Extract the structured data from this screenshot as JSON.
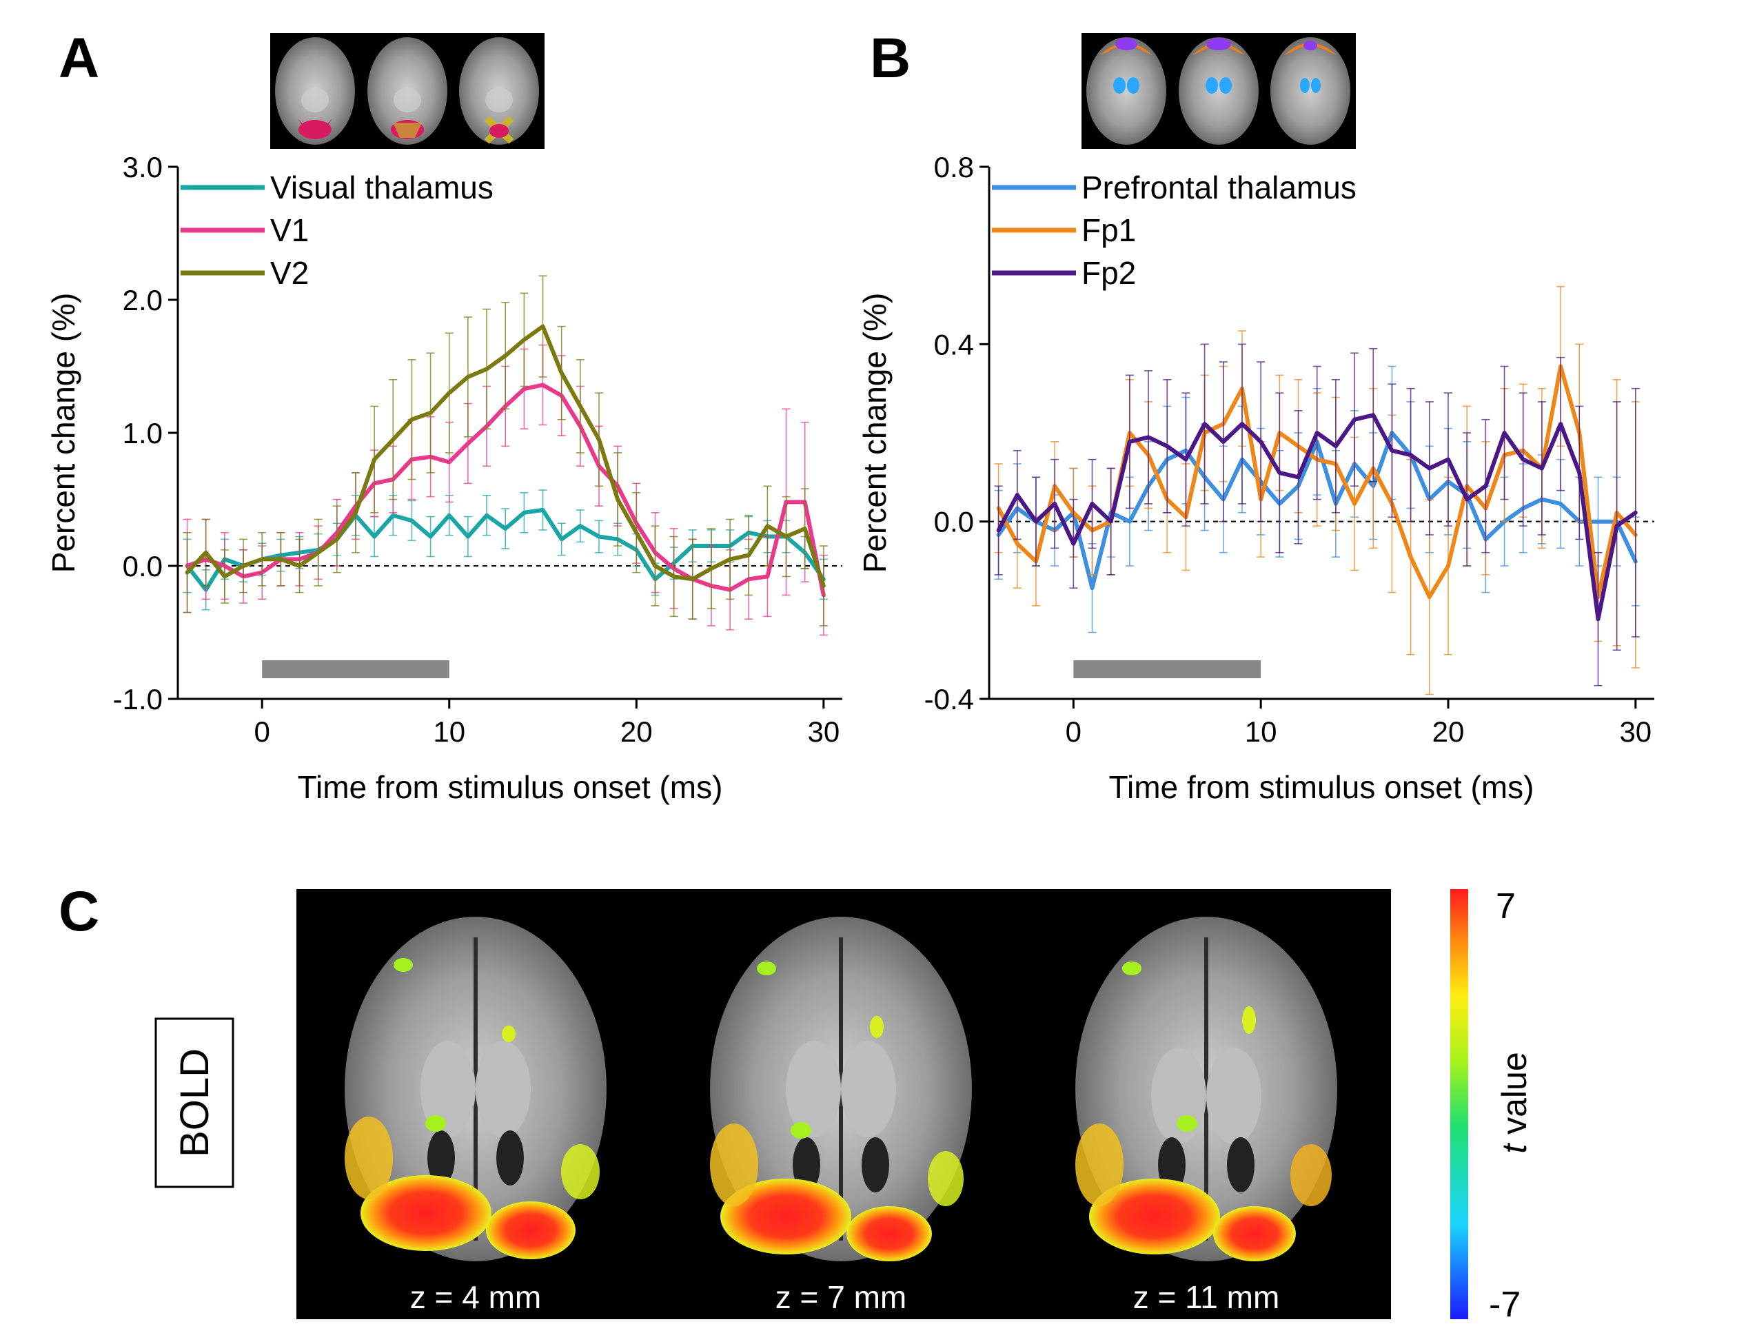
{
  "panel_labels": {
    "a": "A",
    "b": "B",
    "c": "C"
  },
  "colors": {
    "visual_thalamus": "#1AA6A6",
    "v1": "#E8398D",
    "v2": "#7A7A10",
    "prefrontal_thalamus": "#3D8FE0",
    "fp1": "#EF8618",
    "fp2": "#4B1787",
    "stimulus_bar": "#888888"
  },
  "chart_data": [
    {
      "id": "A",
      "type": "line",
      "xlabel": "Time from stimulus onset (ms)",
      "ylabel": "Percent change (%)",
      "xlim": [
        -4.5,
        31
      ],
      "ylim": [
        -1.0,
        3.0
      ],
      "xticks": [
        0,
        10,
        20,
        30
      ],
      "yticks": [
        -1.0,
        0.0,
        1.0,
        2.0,
        3.0
      ],
      "ytick_labels": [
        "-1.0",
        "0.0",
        "1.0",
        "2.0",
        "3.0"
      ],
      "zero_line": true,
      "stimulus_bar": [
        0,
        10
      ],
      "x": [
        -4,
        -3,
        -2,
        -1,
        0,
        1,
        2,
        3,
        4,
        5,
        6,
        7,
        8,
        9,
        10,
        11,
        12,
        13,
        14,
        15,
        16,
        17,
        18,
        19,
        20,
        21,
        22,
        23,
        24,
        25,
        26,
        27,
        28,
        29,
        30
      ],
      "series": [
        {
          "name": "Visual thalamus",
          "color_key": "visual_thalamus",
          "values": [
            0.0,
            -0.18,
            0.05,
            0.0,
            0.05,
            0.08,
            0.1,
            0.12,
            0.2,
            0.38,
            0.22,
            0.38,
            0.34,
            0.22,
            0.38,
            0.22,
            0.38,
            0.28,
            0.4,
            0.42,
            0.2,
            0.3,
            0.22,
            0.2,
            0.12,
            -0.1,
            0.02,
            0.15,
            0.15,
            0.15,
            0.25,
            0.22,
            0.22,
            0.1,
            -0.1
          ],
          "errors": [
            0.2,
            0.15,
            0.15,
            0.12,
            0.12,
            0.12,
            0.12,
            0.12,
            0.12,
            0.15,
            0.15,
            0.15,
            0.15,
            0.15,
            0.15,
            0.15,
            0.15,
            0.15,
            0.15,
            0.15,
            0.12,
            0.12,
            0.12,
            0.12,
            0.12,
            0.12,
            0.12,
            0.12,
            0.12,
            0.12,
            0.12,
            0.12,
            0.12,
            0.12,
            0.15
          ]
        },
        {
          "name": "V1",
          "color_key": "v1",
          "values": [
            0.0,
            0.05,
            0.0,
            -0.08,
            -0.05,
            0.05,
            0.05,
            0.1,
            0.25,
            0.45,
            0.62,
            0.65,
            0.8,
            0.82,
            0.78,
            0.92,
            1.05,
            1.2,
            1.33,
            1.36,
            1.28,
            1.05,
            0.75,
            0.6,
            0.32,
            0.1,
            -0.02,
            -0.1,
            -0.15,
            -0.18,
            -0.1,
            -0.08,
            0.48,
            0.48,
            -0.22
          ],
          "errors": [
            0.35,
            0.3,
            0.25,
            0.2,
            0.2,
            0.2,
            0.2,
            0.2,
            0.25,
            0.25,
            0.25,
            0.25,
            0.3,
            0.3,
            0.3,
            0.3,
            0.3,
            0.3,
            0.3,
            0.3,
            0.3,
            0.3,
            0.3,
            0.3,
            0.3,
            0.3,
            0.3,
            0.3,
            0.3,
            0.3,
            0.3,
            0.3,
            0.7,
            0.6,
            0.3
          ]
        },
        {
          "name": "V2",
          "color_key": "v2",
          "values": [
            -0.05,
            0.1,
            -0.08,
            0.0,
            0.05,
            0.05,
            0.0,
            0.1,
            0.2,
            0.4,
            0.8,
            0.95,
            1.1,
            1.15,
            1.3,
            1.42,
            1.48,
            1.58,
            1.7,
            1.8,
            1.45,
            1.2,
            0.95,
            0.5,
            0.25,
            0.0,
            -0.08,
            -0.1,
            -0.02,
            0.05,
            0.08,
            0.3,
            0.22,
            0.28,
            -0.15
          ],
          "errors": [
            0.3,
            0.25,
            0.2,
            0.2,
            0.2,
            0.2,
            0.2,
            0.25,
            0.25,
            0.3,
            0.4,
            0.45,
            0.45,
            0.45,
            0.45,
            0.45,
            0.45,
            0.4,
            0.35,
            0.38,
            0.35,
            0.35,
            0.35,
            0.35,
            0.3,
            0.3,
            0.3,
            0.3,
            0.3,
            0.3,
            0.3,
            0.3,
            0.3,
            0.3,
            0.3
          ]
        }
      ]
    },
    {
      "id": "B",
      "type": "line",
      "xlabel": "Time from stimulus onset (ms)",
      "ylabel": "Percent change (%)",
      "xlim": [
        -4.5,
        31
      ],
      "ylim": [
        -0.4,
        0.8
      ],
      "xticks": [
        0,
        10,
        20,
        30
      ],
      "yticks": [
        -0.4,
        0.0,
        0.4,
        0.8
      ],
      "ytick_labels": [
        "-0.4",
        "0.0",
        "0.4",
        "0.8"
      ],
      "zero_line": true,
      "stimulus_bar": [
        0,
        10
      ],
      "x": [
        -4,
        -3,
        -2,
        -1,
        0,
        1,
        2,
        3,
        4,
        5,
        6,
        7,
        8,
        9,
        10,
        11,
        12,
        13,
        14,
        15,
        16,
        17,
        18,
        19,
        20,
        21,
        22,
        23,
        24,
        25,
        26,
        27,
        28,
        29,
        30
      ],
      "series": [
        {
          "name": "Prefrontal thalamus",
          "color_key": "prefrontal_thalamus",
          "values": [
            -0.03,
            0.03,
            0.0,
            -0.02,
            0.02,
            -0.15,
            0.02,
            0.0,
            0.08,
            0.14,
            0.16,
            0.1,
            0.05,
            0.14,
            0.09,
            0.04,
            0.08,
            0.18,
            0.04,
            0.13,
            0.08,
            0.2,
            0.15,
            0.05,
            0.09,
            0.06,
            -0.04,
            0.0,
            0.03,
            0.05,
            0.04,
            0.0,
            0.0,
            0.0,
            -0.09
          ],
          "errors": [
            0.1,
            0.1,
            0.1,
            0.08,
            0.1,
            0.1,
            0.1,
            0.1,
            0.1,
            0.12,
            0.12,
            0.12,
            0.12,
            0.12,
            0.12,
            0.12,
            0.12,
            0.12,
            0.12,
            0.12,
            0.12,
            0.15,
            0.12,
            0.12,
            0.12,
            0.12,
            0.12,
            0.1,
            0.1,
            0.1,
            0.1,
            0.1,
            0.1,
            0.1,
            0.1
          ]
        },
        {
          "name": "Fp1",
          "color_key": "fp1",
          "values": [
            0.03,
            -0.05,
            -0.09,
            0.08,
            0.02,
            -0.02,
            0.0,
            0.2,
            0.15,
            0.05,
            0.01,
            0.2,
            0.22,
            0.3,
            0.05,
            0.2,
            0.17,
            0.14,
            0.13,
            0.04,
            0.12,
            0.04,
            -0.08,
            -0.17,
            -0.1,
            0.08,
            0.03,
            0.15,
            0.16,
            0.12,
            0.35,
            0.2,
            -0.17,
            0.02,
            -0.03
          ],
          "errors": [
            0.1,
            0.1,
            0.1,
            0.1,
            0.1,
            0.1,
            0.12,
            0.12,
            0.12,
            0.12,
            0.12,
            0.13,
            0.13,
            0.13,
            0.13,
            0.13,
            0.15,
            0.15,
            0.15,
            0.15,
            0.18,
            0.2,
            0.22,
            0.22,
            0.2,
            0.18,
            0.15,
            0.15,
            0.15,
            0.18,
            0.18,
            0.2,
            0.1,
            0.3,
            0.3
          ]
        },
        {
          "name": "Fp2",
          "color_key": "fp2",
          "values": [
            -0.02,
            0.06,
            0.0,
            0.04,
            -0.05,
            0.04,
            0.0,
            0.18,
            0.19,
            0.17,
            0.14,
            0.22,
            0.18,
            0.22,
            0.18,
            0.11,
            0.1,
            0.2,
            0.17,
            0.23,
            0.24,
            0.16,
            0.15,
            0.12,
            0.14,
            0.05,
            0.08,
            0.2,
            0.14,
            0.12,
            0.22,
            0.11,
            -0.22,
            -0.01,
            0.02
          ],
          "errors": [
            0.1,
            0.1,
            0.1,
            0.1,
            0.1,
            0.1,
            0.12,
            0.15,
            0.15,
            0.15,
            0.15,
            0.18,
            0.18,
            0.18,
            0.18,
            0.18,
            0.15,
            0.15,
            0.15,
            0.15,
            0.15,
            0.15,
            0.15,
            0.15,
            0.15,
            0.15,
            0.15,
            0.15,
            0.15,
            0.15,
            0.15,
            0.15,
            0.15,
            0.28,
            0.28
          ]
        }
      ]
    }
  ],
  "panel_c": {
    "boxed_label": "BOLD",
    "slices": [
      "z = 4 mm",
      "z = 7 mm",
      "z = 11 mm"
    ],
    "colorbar": {
      "max_label": "7",
      "min_label": "-7",
      "title_italic": "t",
      "title_rest": " value"
    }
  }
}
